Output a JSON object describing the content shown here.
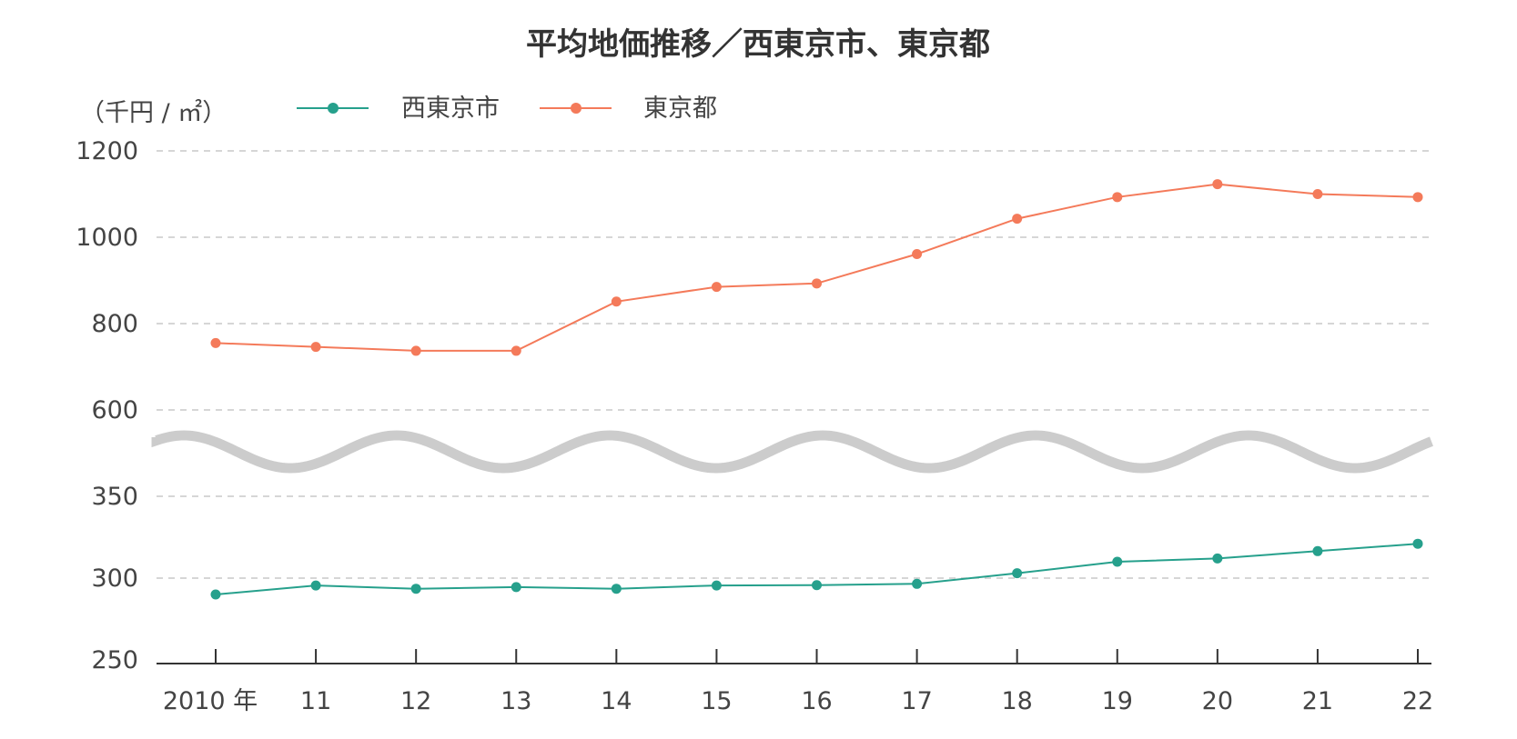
{
  "chart_data": {
    "type": "line",
    "title": "平均地価推移／西東京市、東京都",
    "ylabel": "（千円 / ㎡）",
    "xlabel": "",
    "categories": [
      "2010 年",
      "11",
      "12",
      "13",
      "14",
      "15",
      "16",
      "17",
      "18",
      "19",
      "20",
      "21",
      "22"
    ],
    "x": [
      2010,
      2011,
      2012,
      2013,
      2014,
      2015,
      2016,
      2017,
      2018,
      2019,
      2020,
      2021,
      2022
    ],
    "series": [
      {
        "name": "西東京市",
        "color": "#26a08c",
        "values": [
          290,
          295.5,
          293.5,
          294.5,
          293.5,
          295.5,
          295.7,
          296.5,
          303,
          310,
          312,
          316.5,
          321
        ]
      },
      {
        "name": "東京都",
        "color": "#f47a5a",
        "values": [
          755,
          746,
          737,
          737,
          851,
          885,
          893,
          961,
          1043,
          1093,
          1123,
          1100,
          1093
        ]
      }
    ],
    "axis_break": true,
    "lower_segment": {
      "ylim": [
        250,
        350
      ],
      "ticks": [
        250,
        300,
        350
      ]
    },
    "upper_segment": {
      "ylim": [
        600,
        1200
      ],
      "ticks": [
        600,
        800,
        1000,
        1200
      ]
    },
    "ytick_labels": [
      "1200",
      "1000",
      "800",
      "600",
      "350",
      "300",
      "250"
    ],
    "grid": true,
    "legend_position": "top-left"
  }
}
